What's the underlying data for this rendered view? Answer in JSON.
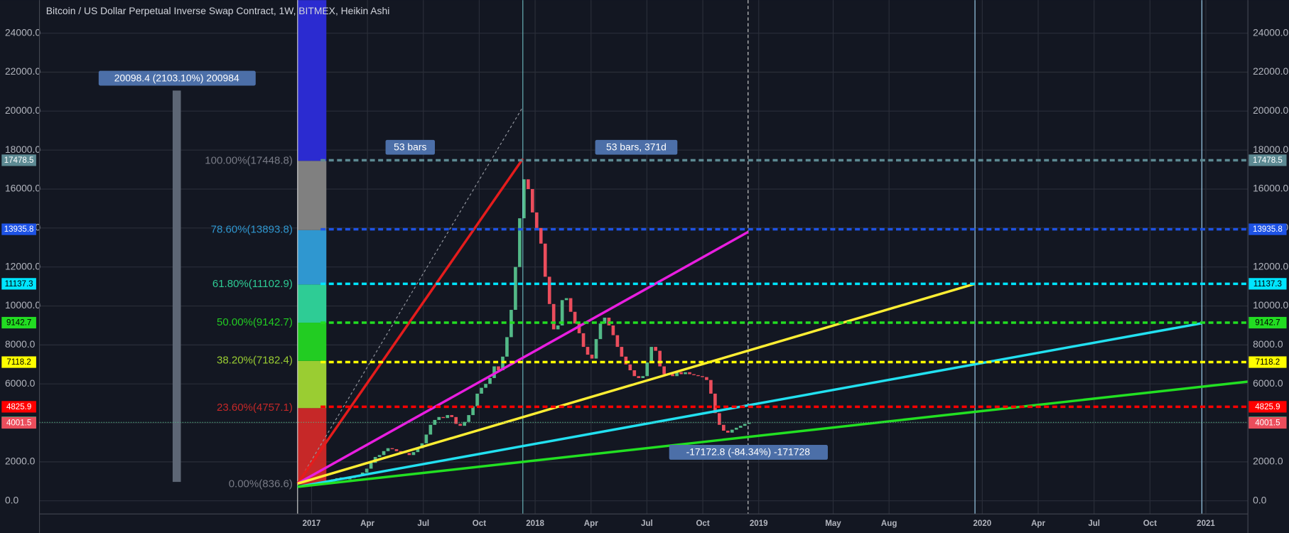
{
  "chart_data": {
    "type": "candlestick",
    "title": "Bitcoin / US Dollar Perpetual Inverse Swap Contract, 1W, BITMEX, Heikin Ashi",
    "xlim": [
      2015.783,
      2021.188
    ],
    "ylim": [
      -675,
      25696
    ],
    "grid": true,
    "xticks": [
      {
        "value": 2017,
        "label": "2017"
      },
      {
        "value": 2017.25,
        "label": "Apr"
      },
      {
        "value": 2017.5,
        "label": "Jul"
      },
      {
        "value": 2017.75,
        "label": "Oct"
      },
      {
        "value": 2018,
        "label": "2018"
      },
      {
        "value": 2018.25,
        "label": "Apr"
      },
      {
        "value": 2018.5,
        "label": "Jul"
      },
      {
        "value": 2018.75,
        "label": "Oct"
      },
      {
        "value": 2019,
        "label": "2019"
      },
      {
        "value": 2019.333,
        "label": "May"
      },
      {
        "value": 2019.583,
        "label": "Aug"
      },
      {
        "value": 2020,
        "label": "2020"
      },
      {
        "value": 2020.25,
        "label": "Apr"
      },
      {
        "value": 2020.5,
        "label": "Jul"
      },
      {
        "value": 2020.75,
        "label": "Oct"
      },
      {
        "value": 2021,
        "label": "2021"
      }
    ],
    "yticks": [
      {
        "value": 0,
        "label": "0.0"
      },
      {
        "value": 2000,
        "label": "2000.0"
      },
      {
        "value": 4000,
        "label": "4000.0"
      },
      {
        "value": 6000,
        "label": "6000.0"
      },
      {
        "value": 8000,
        "label": "8000.0"
      },
      {
        "value": 10000,
        "label": "10000.0"
      },
      {
        "value": 12000,
        "label": "12000.0"
      },
      {
        "value": 14000,
        "label": "14000.0"
      },
      {
        "value": 16000,
        "label": "16000.0"
      },
      {
        "value": 18000,
        "label": "18000.0"
      },
      {
        "value": 20000,
        "label": "20000.0"
      },
      {
        "value": 22000,
        "label": "22000.0"
      },
      {
        "value": 24000,
        "label": "24000.0"
      }
    ],
    "candles": {
      "up_color": "#53b987",
      "down_color": "#eb4d5c",
      "x": [
        2017,
        2017.019,
        2017.038,
        2017.057,
        2017.076,
        2017.095,
        2017.114,
        2017.133,
        2017.152,
        2017.171,
        2017.19,
        2017.209,
        2017.228,
        2017.247,
        2017.266,
        2017.285,
        2017.304,
        2017.323,
        2017.342,
        2017.361,
        2017.38,
        2017.399,
        2017.418,
        2017.437,
        2017.456,
        2017.475,
        2017.494,
        2017.513,
        2017.532,
        2017.551,
        2017.57,
        2017.589,
        2017.608,
        2017.627,
        2017.646,
        2017.665,
        2017.684,
        2017.703,
        2017.722,
        2017.741,
        2017.76,
        2017.779,
        2017.798,
        2017.817,
        2017.836,
        2017.855,
        2017.874,
        2017.893,
        2017.912,
        2017.931,
        2017.95,
        2017.969,
        2017.988,
        2018.007,
        2018.026,
        2018.045,
        2018.064,
        2018.083,
        2018.102,
        2018.121,
        2018.14,
        2018.159,
        2018.178,
        2018.197,
        2018.216,
        2018.235,
        2018.254,
        2018.273,
        2018.292,
        2018.311,
        2018.33,
        2018.349,
        2018.368,
        2018.387,
        2018.406,
        2018.425,
        2018.444,
        2018.463,
        2018.482,
        2018.501,
        2018.52,
        2018.539,
        2018.558,
        2018.577,
        2018.596,
        2018.615,
        2018.634,
        2018.653,
        2018.672,
        2018.691,
        2018.71,
        2018.729,
        2018.748,
        2018.767,
        2018.786,
        2018.805,
        2018.824,
        2018.843,
        2018.862,
        2018.881,
        2018.9,
        2018.919,
        2018.938,
        2018.957
      ],
      "open": [
        880,
        900,
        920,
        980,
        1010,
        1040,
        1100,
        1160,
        1200,
        1100,
        1170,
        1220,
        1300,
        1450,
        1650,
        1950,
        2250,
        2350,
        2550,
        2700,
        2650,
        2550,
        2500,
        2450,
        2350,
        2500,
        2700,
        2950,
        3400,
        3900,
        4150,
        4300,
        4250,
        4400,
        4300,
        3950,
        3850,
        4050,
        4400,
        4850,
        5500,
        5800,
        6000,
        6300,
        6900,
        6700,
        7400,
        8400,
        9800,
        12000,
        14500,
        16500,
        16000,
        14800,
        14000,
        13200,
        11500,
        10100,
        8800,
        9000,
        10300,
        10400,
        9700,
        9100,
        8600,
        7900,
        7500,
        7300,
        8300,
        9100,
        9400,
        9000,
        8500,
        7900,
        7400,
        7000,
        6700,
        6400,
        6300,
        6400,
        7100,
        7900,
        7700,
        6900,
        6500,
        6500,
        6400,
        6600,
        6500,
        6600,
        6500,
        6450,
        6400,
        6350,
        6200,
        5500,
        4500,
        3900,
        3600,
        3500,
        3650,
        3750,
        3850,
        3950
      ],
      "close": [
        900,
        920,
        980,
        1010,
        1040,
        1100,
        1160,
        1200,
        1100,
        1170,
        1220,
        1300,
        1450,
        1650,
        1950,
        2250,
        2350,
        2550,
        2700,
        2650,
        2550,
        2500,
        2450,
        2350,
        2500,
        2700,
        2950,
        3400,
        3900,
        4150,
        4300,
        4250,
        4400,
        4300,
        3950,
        3850,
        4050,
        4400,
        4850,
        5500,
        5800,
        6000,
        6300,
        6900,
        6700,
        7400,
        8400,
        9800,
        12000,
        14500,
        16500,
        16000,
        14800,
        14000,
        13200,
        11500,
        10100,
        8800,
        9000,
        10300,
        10400,
        9700,
        9100,
        8600,
        7900,
        7500,
        7300,
        8300,
        9100,
        9400,
        9000,
        8500,
        7900,
        7400,
        7000,
        6700,
        6400,
        6300,
        6400,
        7100,
        7900,
        7700,
        6900,
        6500,
        6500,
        6400,
        6600,
        6500,
        6600,
        6500,
        6450,
        6400,
        6350,
        6200,
        5500,
        4500,
        3900,
        3600,
        3500,
        3650,
        3750,
        3850,
        3950,
        4000
      ]
    },
    "fib_levels": [
      {
        "label": "0.00%(836.6)",
        "value": 836.6,
        "color": "#787b86",
        "band_color": "#c62828"
      },
      {
        "label": "23.60%(4757.1)",
        "value": 4757.1,
        "color": "#c62828",
        "band_color": "#9acd32"
      },
      {
        "label": "38.20%(7182.4)",
        "value": 7182.4,
        "color": "#9acd32",
        "band_color": "#22cc22"
      },
      {
        "label": "50.00%(9142.7)",
        "value": 9142.7,
        "color": "#22cc22",
        "band_color": "#2ecc95"
      },
      {
        "label": "61.80%(11102.9)",
        "value": 11102.9,
        "color": "#2ecc95",
        "band_color": "#2f97d0"
      },
      {
        "label": "78.60%(13893.8)",
        "value": 13893.8,
        "color": "#2f97d0",
        "band_color": "#808080"
      },
      {
        "label": "100.00%(17448.8)",
        "value": 17448.8,
        "color": "#787b86",
        "band_color": "#2b2bd0"
      }
    ],
    "price_lines": [
      {
        "value": 17478.5,
        "color": "#5d8a93",
        "text_color": "#ffffff",
        "style": "dashed"
      },
      {
        "value": 13935.8,
        "color": "#1e53e5",
        "text_color": "#ffffff",
        "style": "dashed"
      },
      {
        "value": 11137.3,
        "color": "#00e5ff",
        "text_color": "#000000",
        "style": "dashed"
      },
      {
        "value": 9142.7,
        "color": "#22dd22",
        "text_color": "#000000",
        "style": "dashed"
      },
      {
        "value": 7118.2,
        "color": "#ffff00",
        "text_color": "#000000",
        "style": "dashed"
      },
      {
        "value": 4825.9,
        "color": "#ff0000",
        "text_color": "#ffffff",
        "style": "dashed"
      },
      {
        "value": 4026.9,
        "color": "#53b987",
        "text_color": "#ffffff",
        "style": "dotted"
      },
      {
        "value": 4001.5,
        "color": "#eb4d5c",
        "text_color": "#ffffff",
        "style": "none"
      }
    ],
    "annotations": [
      "20098.4 (2103.10%) 200984",
      "53 bars",
      "53 bars, 371d",
      "-17172.8 (-84.34%) -171728"
    ]
  }
}
